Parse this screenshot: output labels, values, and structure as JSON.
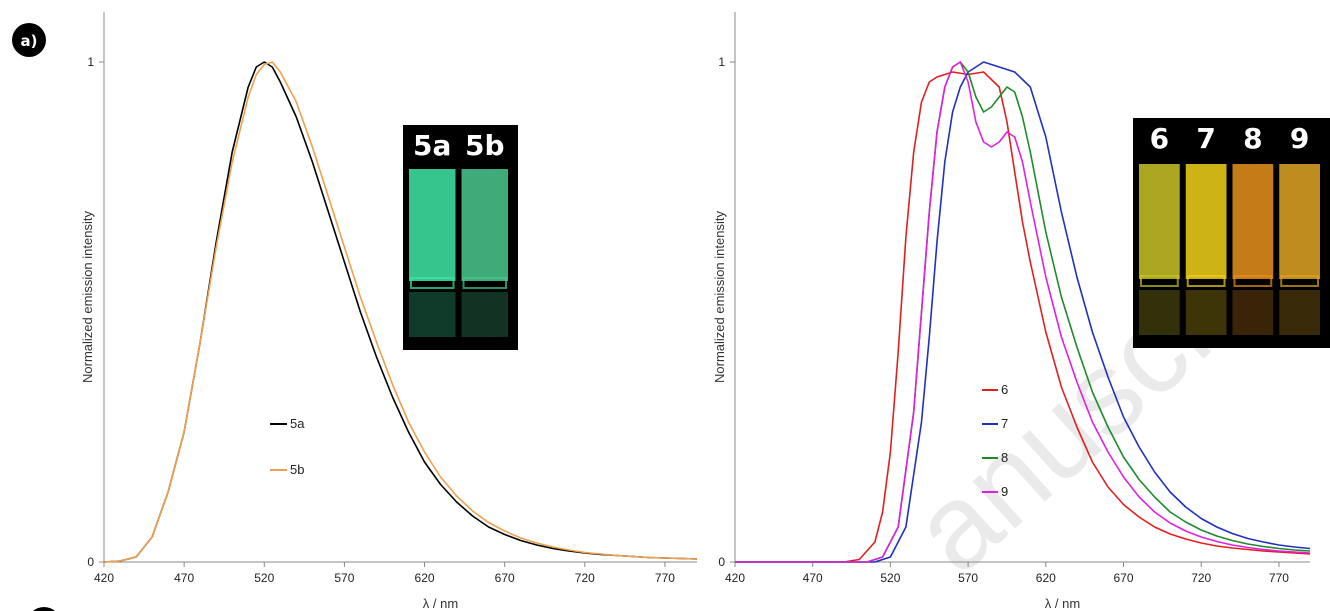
{
  "panel_label": "a)",
  "watermark": "anuscript",
  "chart_data": [
    {
      "type": "line",
      "title": "",
      "xlabel": "λ / nm",
      "ylabel": "Normalized emission intensity",
      "xlim": [
        420,
        790
      ],
      "ylim": [
        0,
        1
      ],
      "xticks": [
        420,
        470,
        520,
        570,
        620,
        670,
        720,
        770
      ],
      "yticks": [
        0,
        1
      ],
      "grid": false,
      "legend_position": "center-left",
      "inset": {
        "labels": [
          "5a",
          "5b"
        ],
        "colors": [
          "#3fe8a6",
          "#49c98e"
        ]
      },
      "series": [
        {
          "name": "5a",
          "color": "#000000",
          "x": [
            420,
            430,
            440,
            450,
            460,
            470,
            480,
            490,
            500,
            510,
            515,
            520,
            525,
            530,
            540,
            550,
            560,
            570,
            580,
            590,
            600,
            610,
            620,
            630,
            640,
            650,
            660,
            670,
            680,
            690,
            700,
            710,
            720,
            730,
            740,
            750,
            760,
            770,
            780,
            790
          ],
          "y": [
            0,
            0.002,
            0.01,
            0.05,
            0.14,
            0.26,
            0.44,
            0.64,
            0.82,
            0.95,
            0.99,
            1.0,
            0.99,
            0.96,
            0.89,
            0.8,
            0.7,
            0.6,
            0.5,
            0.41,
            0.33,
            0.26,
            0.2,
            0.155,
            0.12,
            0.092,
            0.07,
            0.055,
            0.043,
            0.034,
            0.027,
            0.022,
            0.018,
            0.015,
            0.013,
            0.011,
            0.009,
            0.008,
            0.007,
            0.006
          ]
        },
        {
          "name": "5b",
          "color": "#f0a050",
          "x": [
            420,
            430,
            440,
            450,
            460,
            470,
            480,
            490,
            500,
            510,
            515,
            520,
            525,
            530,
            540,
            550,
            560,
            570,
            580,
            590,
            600,
            610,
            620,
            630,
            640,
            650,
            660,
            670,
            680,
            690,
            700,
            710,
            720,
            730,
            740,
            750,
            760,
            770,
            780,
            790
          ],
          "y": [
            0,
            0.002,
            0.01,
            0.05,
            0.14,
            0.26,
            0.44,
            0.63,
            0.8,
            0.93,
            0.975,
            0.995,
            1.0,
            0.98,
            0.92,
            0.83,
            0.73,
            0.63,
            0.53,
            0.44,
            0.355,
            0.28,
            0.22,
            0.17,
            0.132,
            0.102,
            0.079,
            0.062,
            0.048,
            0.038,
            0.03,
            0.024,
            0.019,
            0.016,
            0.013,
            0.011,
            0.009,
            0.008,
            0.007,
            0.006
          ]
        }
      ]
    },
    {
      "type": "line",
      "title": "",
      "xlabel": "λ / nm",
      "ylabel": "Normalized emission intensity",
      "xlim": [
        420,
        790
      ],
      "ylim": [
        0,
        1
      ],
      "xticks": [
        420,
        470,
        520,
        570,
        620,
        670,
        720,
        770
      ],
      "yticks": [
        0,
        1
      ],
      "grid": false,
      "legend_position": "center",
      "inset": {
        "labels": [
          "6",
          "7",
          "8",
          "9"
        ],
        "colors": [
          "#c9c428",
          "#f2d21a",
          "#e8901c",
          "#e0a424"
        ]
      },
      "series": [
        {
          "name": "6",
          "color": "#e02020",
          "x": [
            420,
            490,
            500,
            510,
            515,
            520,
            525,
            530,
            535,
            540,
            545,
            550,
            560,
            570,
            580,
            590,
            595,
            600,
            605,
            610,
            620,
            630,
            640,
            650,
            660,
            670,
            680,
            690,
            700,
            710,
            720,
            730,
            740,
            750,
            760,
            770,
            780,
            790
          ],
          "y": [
            0,
            0,
            0.005,
            0.04,
            0.1,
            0.22,
            0.42,
            0.65,
            0.82,
            0.92,
            0.96,
            0.97,
            0.98,
            0.975,
            0.98,
            0.95,
            0.88,
            0.78,
            0.68,
            0.6,
            0.46,
            0.35,
            0.27,
            0.2,
            0.15,
            0.115,
            0.09,
            0.07,
            0.056,
            0.046,
            0.038,
            0.032,
            0.028,
            0.025,
            0.022,
            0.02,
            0.018,
            0.016
          ]
        },
        {
          "name": "7",
          "color": "#2030c0",
          "x": [
            420,
            510,
            520,
            530,
            540,
            545,
            550,
            555,
            560,
            565,
            570,
            575,
            580,
            590,
            600,
            610,
            620,
            630,
            640,
            650,
            660,
            670,
            680,
            690,
            700,
            710,
            720,
            730,
            740,
            750,
            760,
            770,
            780,
            790
          ],
          "y": [
            0,
            0,
            0.01,
            0.07,
            0.28,
            0.45,
            0.64,
            0.8,
            0.9,
            0.95,
            0.98,
            0.99,
            1.0,
            0.99,
            0.98,
            0.95,
            0.85,
            0.7,
            0.57,
            0.46,
            0.37,
            0.29,
            0.23,
            0.18,
            0.14,
            0.11,
            0.087,
            0.07,
            0.057,
            0.047,
            0.04,
            0.034,
            0.03,
            0.027
          ]
        },
        {
          "name": "8",
          "color": "#1f8a2a",
          "x": [
            420,
            505,
            515,
            525,
            535,
            540,
            545,
            550,
            555,
            560,
            565,
            570,
            575,
            580,
            585,
            590,
            595,
            600,
            605,
            610,
            620,
            630,
            640,
            650,
            660,
            670,
            680,
            690,
            700,
            710,
            720,
            730,
            740,
            750,
            760,
            770,
            780,
            790
          ],
          "y": [
            0,
            0,
            0.01,
            0.07,
            0.3,
            0.5,
            0.7,
            0.86,
            0.95,
            0.99,
            1.0,
            0.98,
            0.93,
            0.9,
            0.91,
            0.93,
            0.95,
            0.94,
            0.89,
            0.82,
            0.66,
            0.53,
            0.43,
            0.34,
            0.27,
            0.21,
            0.165,
            0.13,
            0.1,
            0.08,
            0.064,
            0.052,
            0.043,
            0.036,
            0.031,
            0.027,
            0.024,
            0.022
          ]
        },
        {
          "name": "9",
          "color": "#e020e0",
          "x": [
            420,
            505,
            515,
            525,
            535,
            540,
            545,
            550,
            555,
            560,
            565,
            570,
            575,
            580,
            585,
            590,
            595,
            600,
            605,
            610,
            620,
            630,
            640,
            650,
            660,
            670,
            680,
            690,
            700,
            710,
            720,
            730,
            740,
            750,
            760,
            770,
            780,
            790
          ],
          "y": [
            0,
            0,
            0.01,
            0.07,
            0.3,
            0.5,
            0.7,
            0.86,
            0.95,
            0.99,
            1.0,
            0.96,
            0.88,
            0.84,
            0.83,
            0.84,
            0.86,
            0.85,
            0.8,
            0.72,
            0.57,
            0.45,
            0.36,
            0.28,
            0.22,
            0.17,
            0.13,
            0.1,
            0.078,
            0.062,
            0.05,
            0.041,
            0.034,
            0.029,
            0.025,
            0.022,
            0.02,
            0.018
          ]
        }
      ]
    }
  ]
}
